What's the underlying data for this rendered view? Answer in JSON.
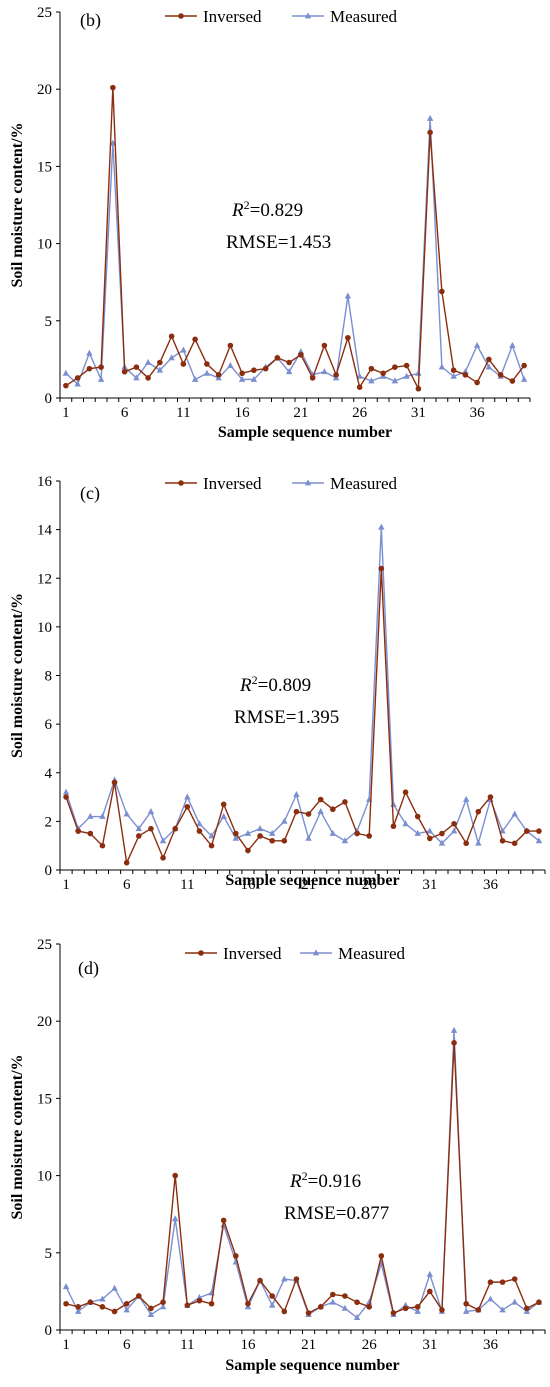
{
  "colors": {
    "inversed": "#8B2E0F",
    "measured": "#7B8FD0"
  },
  "chart_data": [
    {
      "type": "line",
      "panel_label": "(b)",
      "xlabel": "Sample sequence number",
      "ylabel": "Soil moisture content/%",
      "ylim": [
        0,
        25
      ],
      "yticks": [
        0,
        5,
        10,
        15,
        20,
        25
      ],
      "xticks": [
        1,
        6,
        11,
        16,
        21,
        26,
        31,
        36
      ],
      "legend_position": "top",
      "r2_prefix": "R",
      "r2_sup": "2",
      "r2_value": "=0.829",
      "rmse": "RMSE=1.453",
      "x": [
        1,
        2,
        3,
        4,
        5,
        6,
        7,
        8,
        9,
        10,
        11,
        12,
        13,
        14,
        15,
        16,
        17,
        18,
        19,
        20,
        21,
        22,
        23,
        24,
        25,
        26,
        27,
        28,
        29,
        30,
        31,
        32,
        33,
        34,
        35,
        36,
        37,
        38,
        39,
        40
      ],
      "series": [
        {
          "name": "Inversed",
          "values": [
            0.8,
            1.3,
            1.9,
            2.0,
            20.1,
            1.7,
            2.0,
            1.3,
            2.3,
            4.0,
            2.2,
            3.8,
            2.2,
            1.5,
            3.4,
            1.6,
            1.8,
            1.9,
            2.6,
            2.3,
            2.8,
            1.3,
            3.4,
            1.5,
            3.9,
            0.7,
            1.9,
            1.6,
            2.0,
            2.1,
            0.6,
            17.2,
            6.9,
            1.8,
            1.5,
            1.0,
            2.5,
            1.5,
            1.1,
            2.1
          ]
        },
        {
          "name": "Measured",
          "values": [
            1.6,
            0.9,
            2.9,
            1.2,
            16.5,
            2.0,
            1.3,
            2.3,
            1.8,
            2.6,
            3.1,
            1.2,
            1.6,
            1.3,
            2.1,
            1.2,
            1.2,
            2.0,
            2.6,
            1.7,
            3.0,
            1.5,
            1.7,
            1.3,
            6.6,
            1.4,
            1.1,
            1.4,
            1.1,
            1.4,
            1.6,
            18.1,
            2.0,
            1.4,
            1.7,
            3.4,
            2.0,
            1.4,
            3.4,
            1.2
          ]
        }
      ]
    },
    {
      "type": "line",
      "panel_label": "(c)",
      "xlabel": "Sample sequence number",
      "ylabel": "Soil moisture content/%",
      "ylim": [
        0,
        16
      ],
      "yticks": [
        0,
        2,
        4,
        6,
        8,
        10,
        12,
        14,
        16
      ],
      "xticks": [
        1,
        6,
        11,
        16,
        21,
        26,
        31,
        36
      ],
      "legend_position": "top",
      "r2_prefix": "R",
      "r2_sup": "2",
      "r2_value": "=0.809",
      "rmse": "RMSE=1.395",
      "x": [
        1,
        2,
        3,
        4,
        5,
        6,
        7,
        8,
        9,
        10,
        11,
        12,
        13,
        14,
        15,
        16,
        17,
        18,
        19,
        20,
        21,
        22,
        23,
        24,
        25,
        26,
        27,
        28,
        29,
        30,
        31,
        32,
        33,
        34,
        35,
        36,
        37,
        38,
        39,
        40
      ],
      "series": [
        {
          "name": "Inversed",
          "values": [
            3.0,
            1.6,
            1.5,
            1.0,
            3.6,
            0.3,
            1.4,
            1.7,
            0.5,
            1.7,
            2.6,
            1.6,
            1.0,
            2.7,
            1.5,
            0.8,
            1.4,
            1.2,
            1.2,
            2.4,
            2.3,
            2.9,
            2.5,
            2.8,
            1.5,
            1.4,
            12.4,
            1.8,
            3.2,
            2.2,
            1.3,
            1.5,
            1.9,
            1.1,
            2.4,
            3.0,
            1.2,
            1.1,
            1.6,
            1.6
          ]
        },
        {
          "name": "Measured",
          "values": [
            3.2,
            1.7,
            2.2,
            2.2,
            3.7,
            2.3,
            1.7,
            2.4,
            1.2,
            1.7,
            3.0,
            1.9,
            1.4,
            2.2,
            1.3,
            1.5,
            1.7,
            1.5,
            2.0,
            3.1,
            1.3,
            2.4,
            1.5,
            1.2,
            1.6,
            2.9,
            14.1,
            2.7,
            1.9,
            1.5,
            1.6,
            1.1,
            1.6,
            2.9,
            1.1,
            2.9,
            1.6,
            2.3,
            1.6,
            1.2
          ]
        }
      ]
    },
    {
      "type": "line",
      "panel_label": "(d)",
      "xlabel": "Sample sequence number",
      "ylabel": "Soil moisture content/%",
      "ylim": [
        0,
        25
      ],
      "yticks": [
        0,
        5,
        10,
        15,
        20,
        25
      ],
      "xticks": [
        1,
        6,
        11,
        16,
        21,
        26,
        31,
        36
      ],
      "legend_position": "top",
      "r2_prefix": "R",
      "r2_sup": "2",
      "r2_value": "=0.916",
      "rmse": "RMSE=0.877",
      "x": [
        1,
        2,
        3,
        4,
        5,
        6,
        7,
        8,
        9,
        10,
        11,
        12,
        13,
        14,
        15,
        16,
        17,
        18,
        19,
        20,
        21,
        22,
        23,
        24,
        25,
        26,
        27,
        28,
        29,
        30,
        31,
        32,
        33,
        34,
        35,
        36,
        37,
        38,
        39,
        40
      ],
      "series": [
        {
          "name": "Inversed",
          "values": [
            1.7,
            1.5,
            1.8,
            1.5,
            1.2,
            1.7,
            2.2,
            1.4,
            1.8,
            10.0,
            1.6,
            1.9,
            1.7,
            7.1,
            4.8,
            1.7,
            3.2,
            2.2,
            1.2,
            3.3,
            1.1,
            1.5,
            2.3,
            2.2,
            1.8,
            1.5,
            4.8,
            1.1,
            1.4,
            1.5,
            2.5,
            1.3,
            18.6,
            1.7,
            1.3,
            3.1,
            3.1,
            3.3,
            1.4,
            1.8
          ]
        },
        {
          "name": "Measured",
          "values": [
            2.8,
            1.2,
            1.8,
            2.0,
            2.7,
            1.3,
            2.2,
            1.0,
            1.5,
            7.2,
            1.6,
            2.1,
            2.4,
            6.8,
            4.4,
            1.5,
            3.2,
            1.6,
            3.3,
            3.2,
            1.0,
            1.5,
            1.8,
            1.4,
            0.8,
            1.8,
            4.3,
            1.0,
            1.6,
            1.2,
            3.6,
            1.2,
            19.4,
            1.2,
            1.3,
            2.0,
            1.3,
            1.8,
            1.2,
            1.8
          ]
        }
      ]
    }
  ]
}
